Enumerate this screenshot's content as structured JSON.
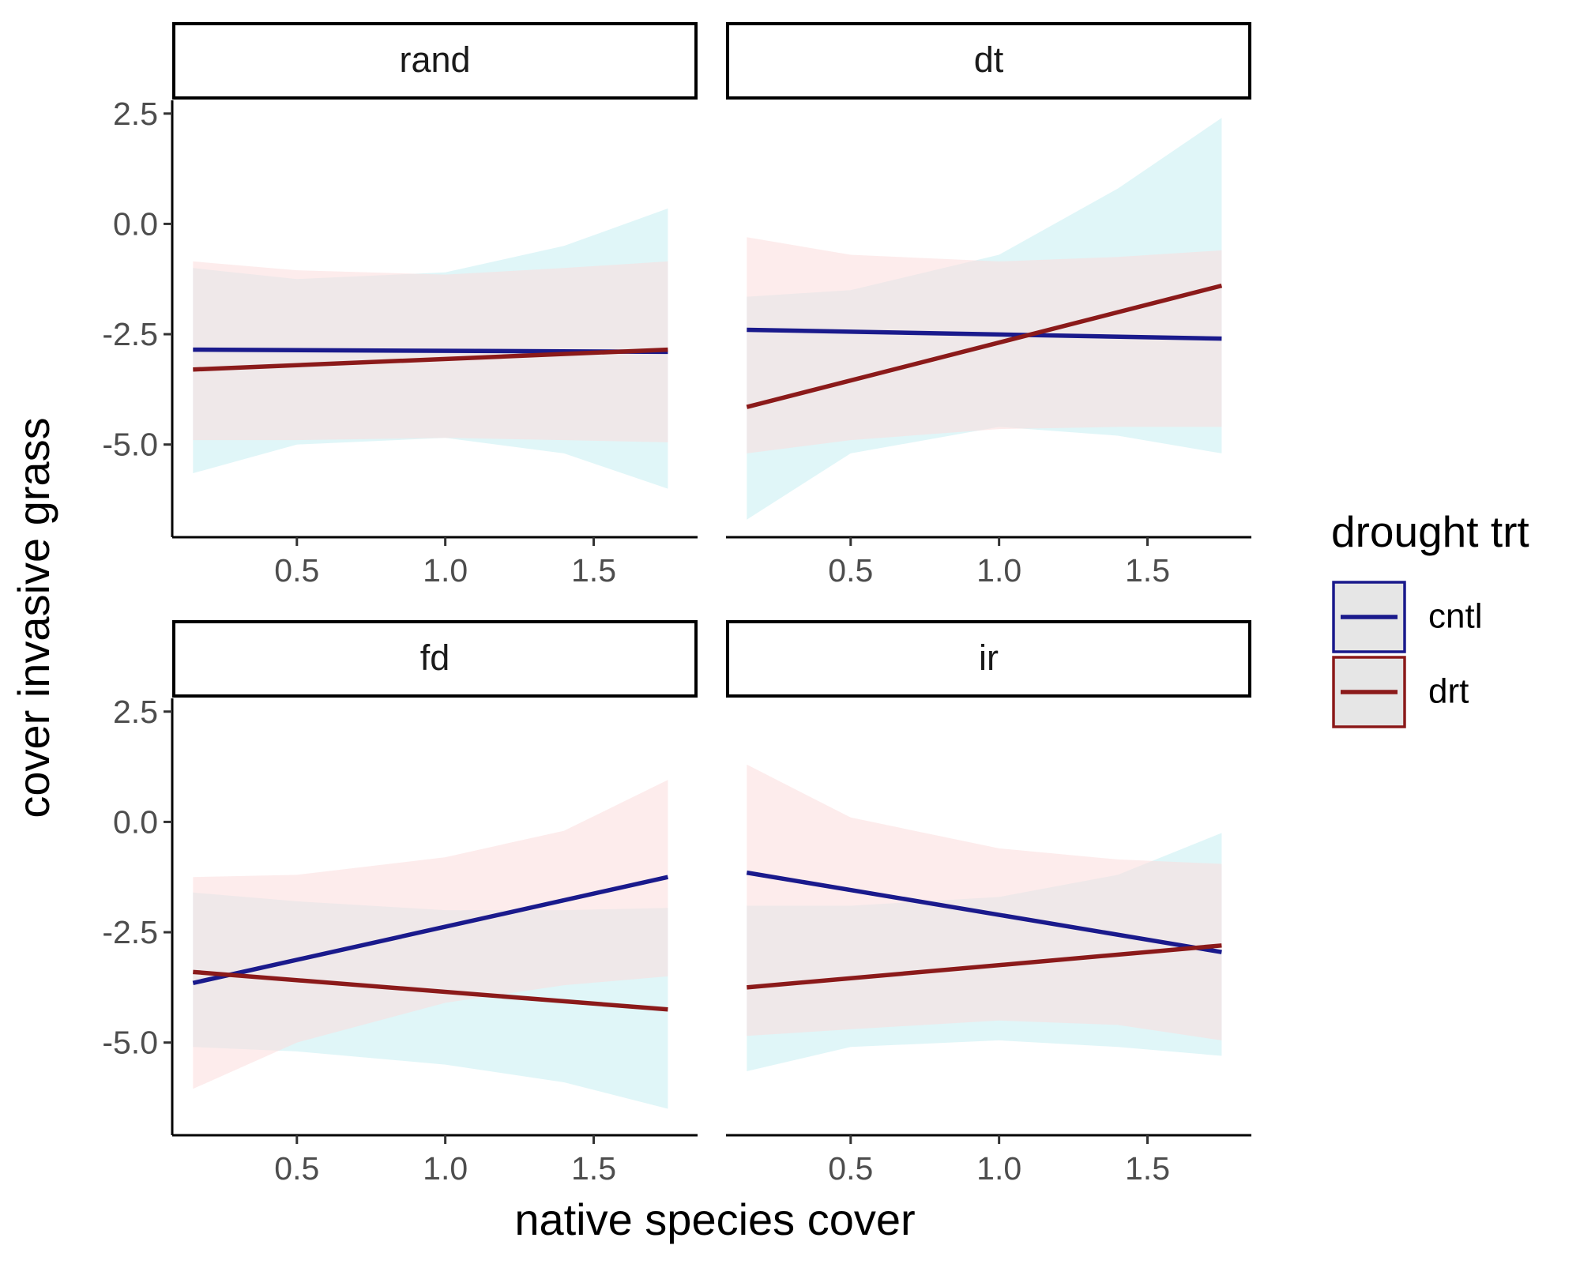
{
  "chart_data": {
    "type": "line",
    "xlabel": "native species cover",
    "ylabel": "cover invasive grass",
    "x_ticks": [
      0.5,
      1.0,
      1.5
    ],
    "x_tick_labels": [
      "0.5",
      "1.0",
      "1.5"
    ],
    "y_ticks": [
      2.5,
      0.0,
      -2.5,
      -5.0
    ],
    "y_tick_labels": [
      "2.5",
      "0.0",
      "-2.5",
      "-5.0"
    ],
    "xlim": [
      0.08,
      1.85
    ],
    "ylim": [
      -7.1,
      2.8
    ],
    "x_range": [
      0.15,
      1.75
    ],
    "legend": {
      "title": "drought trt",
      "placement": "right",
      "entries": [
        {
          "label": "cntl",
          "color": "#1a1a8c",
          "box_color": "#1a1a8c"
        },
        {
          "label": "drt",
          "color": "#8b1a1a",
          "box_color": "#8b1a1a"
        }
      ]
    },
    "colors": {
      "cntl_line": "#1a1a8c",
      "drt_line": "#8b1a1a",
      "cntl_ribbon": "#c6eef2",
      "drt_ribbon": "#fcdcdc",
      "legend_fill": "#e6e6e6"
    },
    "grid": false,
    "panels": [
      {
        "strip": "rand",
        "series": [
          {
            "name": "cntl",
            "y_start": -2.85,
            "y_end": -2.9,
            "ci_x": [
              0.15,
              0.5,
              1.0,
              1.4,
              1.75
            ],
            "ci_lower": [
              -5.65,
              -5.0,
              -4.85,
              -5.2,
              -6.0
            ],
            "ci_upper": [
              -1.0,
              -1.25,
              -1.1,
              -0.5,
              0.35
            ]
          },
          {
            "name": "drt",
            "y_start": -3.3,
            "y_end": -2.85,
            "ci_x": [
              0.15,
              0.5,
              1.0,
              1.4,
              1.75
            ],
            "ci_lower": [
              -4.9,
              -4.9,
              -4.85,
              -4.9,
              -4.95
            ],
            "ci_upper": [
              -0.85,
              -1.05,
              -1.15,
              -1.0,
              -0.85
            ]
          }
        ]
      },
      {
        "strip": "dt",
        "series": [
          {
            "name": "cntl",
            "y_start": -2.4,
            "y_end": -2.6,
            "ci_x": [
              0.15,
              0.5,
              1.0,
              1.4,
              1.75
            ],
            "ci_lower": [
              -6.7,
              -5.2,
              -4.6,
              -4.8,
              -5.2
            ],
            "ci_upper": [
              -1.65,
              -1.5,
              -0.7,
              0.8,
              2.4
            ]
          },
          {
            "name": "drt",
            "y_start": -4.15,
            "y_end": -1.4,
            "ci_x": [
              0.15,
              0.5,
              1.0,
              1.4,
              1.75
            ],
            "ci_lower": [
              -5.2,
              -4.9,
              -4.65,
              -4.6,
              -4.6
            ],
            "ci_upper": [
              -0.3,
              -0.7,
              -0.85,
              -0.75,
              -0.6
            ]
          }
        ]
      },
      {
        "strip": "fd",
        "series": [
          {
            "name": "cntl",
            "y_start": -3.65,
            "y_end": -1.25,
            "ci_x": [
              0.15,
              0.5,
              1.0,
              1.4,
              1.75
            ],
            "ci_lower": [
              -5.1,
              -5.2,
              -5.5,
              -5.9,
              -6.5
            ],
            "ci_upper": [
              -1.6,
              -1.8,
              -2.0,
              -2.0,
              -1.95
            ]
          },
          {
            "name": "drt",
            "y_start": -3.4,
            "y_end": -4.25,
            "ci_x": [
              0.15,
              0.5,
              1.0,
              1.4,
              1.75
            ],
            "ci_lower": [
              -6.05,
              -5.0,
              -4.1,
              -3.7,
              -3.5
            ],
            "ci_upper": [
              -1.25,
              -1.2,
              -0.8,
              -0.2,
              0.95
            ]
          }
        ]
      },
      {
        "strip": "ir",
        "series": [
          {
            "name": "cntl",
            "y_start": -1.15,
            "y_end": -2.95,
            "ci_x": [
              0.15,
              0.5,
              1.0,
              1.4,
              1.75
            ],
            "ci_lower": [
              -5.65,
              -5.1,
              -4.95,
              -5.1,
              -5.3
            ],
            "ci_upper": [
              -1.9,
              -1.9,
              -1.7,
              -1.2,
              -0.25
            ]
          },
          {
            "name": "drt",
            "y_start": -3.75,
            "y_end": -2.8,
            "ci_x": [
              0.15,
              0.5,
              1.0,
              1.4,
              1.75
            ],
            "ci_lower": [
              -4.85,
              -4.7,
              -4.5,
              -4.6,
              -4.95
            ],
            "ci_upper": [
              1.3,
              0.1,
              -0.6,
              -0.85,
              -0.95
            ]
          }
        ]
      }
    ]
  }
}
